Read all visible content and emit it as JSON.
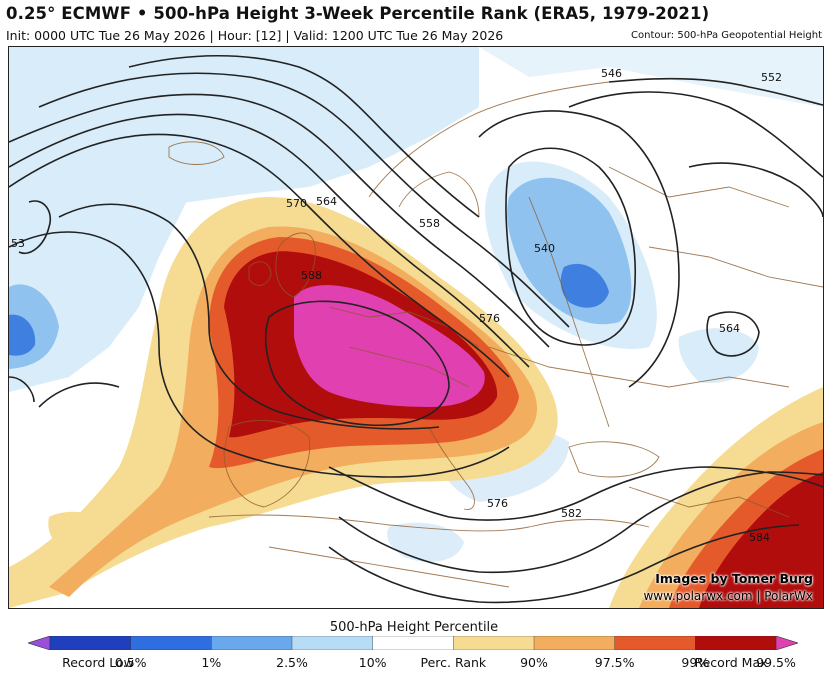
{
  "header": {
    "title": "0.25° ECMWF • 500-hPa Height 3-Week Percentile Rank (ERA5, 1979-2021)",
    "subtitle": "Init: 0000 UTC Tue 26 May 2026 | Hour: [12] | Valid: 1200 UTC Tue 26 May 2026",
    "contour_note": "Contour: 500-hPa Geopotential Height"
  },
  "map": {
    "contour_labels": [
      "546",
      "552",
      "564",
      "570",
      "558",
      "540",
      "588",
      "576",
      "564",
      "576",
      "582",
      "584",
      "53"
    ],
    "credit_line1": "Images by Tomer Burg",
    "credit_line2": "www.polarwx.com | PolarWx"
  },
  "colorbar": {
    "title": "500-hPa Height Percentile",
    "labels": [
      "Record Low",
      "0.5%",
      "1%",
      "2.5%",
      "10%",
      "Perc. Rank",
      "90%",
      "97.5%",
      "99%",
      "99.5%",
      "Record Max"
    ],
    "colors": [
      "#9b4fd8",
      "#1f3fbf",
      "#2f6ee0",
      "#6aa8ee",
      "#b7dcf6",
      "#ffffff",
      "#f6dc92",
      "#f2ad5e",
      "#e55a2a",
      "#b10d0d",
      "#e040b0"
    ]
  },
  "colors": {
    "land": "#ffffff",
    "border": "#8b5a2b",
    "contour": "#222222"
  }
}
